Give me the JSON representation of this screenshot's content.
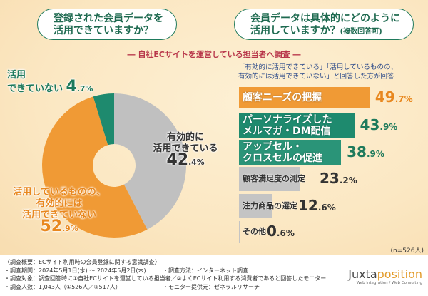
{
  "questions": {
    "left": [
      "登録された会員データを",
      "活用できていますか？"
    ],
    "right": [
      "会員データは具体的にどのように",
      "活用していますか？"
    ],
    "right_note": "(複数回答可)"
  },
  "subtitle": "― 自社ECサイトを運営している担当者へ調査 ―",
  "bar_note": [
    "「有効的に活用できている」「活用しているものの、",
    "有効的には活用できていない」と回答した方が回答"
  ],
  "chart_data": [
    {
      "type": "pie",
      "donut": true,
      "start": "top",
      "direction": "clockwise",
      "slices": [
        {
          "label": "有効的に活用できている",
          "label_lines": [
            "有効的に",
            "活用できている"
          ],
          "value": 42.4,
          "int": "42",
          "dec": ".4%",
          "color": "#c0c0c0",
          "text_color": "#333333"
        },
        {
          "label": "活用しているものの、有効的には活用できていない",
          "label_lines": [
            "活用しているものの、",
            "有効的には",
            "活用できていない"
          ],
          "value": 52.9,
          "int": "52",
          "dec": ".9%",
          "color": "#f09a35",
          "text_color": "#e8871e"
        },
        {
          "label": "活用できていない",
          "label_lines": [
            "活用",
            "できていない"
          ],
          "value": 4.7,
          "int": "4",
          "dec": ".7%",
          "color": "#1e8a6e",
          "text_color": "#1e7a5c"
        }
      ]
    },
    {
      "type": "bar",
      "orientation": "horizontal",
      "unit": "%",
      "categories": [
        "顧客ニーズの把握",
        "パーソナライズしたメルマガ・DM配信",
        "アップセル・クロスセルの促進",
        "顧客満足度の測定",
        "注力商品の選定",
        "その他"
      ],
      "label_lines": [
        [
          "顧客ニーズの把握"
        ],
        [
          "パーソナライズした",
          "メルマガ・DM配信"
        ],
        [
          "アップセル・",
          "クロスセルの促進"
        ],
        [
          "顧客満足度の測定"
        ],
        [
          "注力商品の選定"
        ],
        [
          "その他"
        ]
      ],
      "values": [
        49.7,
        43.9,
        38.9,
        23.2,
        12.6,
        0.6
      ],
      "ints": [
        "49",
        "43",
        "38",
        "23",
        "12",
        "0"
      ],
      "decs": [
        ".7%",
        ".9%",
        ".9%",
        ".2%",
        ".6%",
        ".6%"
      ],
      "colors": [
        "#f09a35",
        "#1e8a6e",
        "#2a9478",
        "#c4c4c4",
        "#c4c4c4",
        "#c4c4c4"
      ],
      "value_colors": [
        "#e8871e",
        "#1e7a5c",
        "#1e7a5c",
        "#333333",
        "#333333",
        "#333333"
      ]
    }
  ],
  "sample": "(n=526人)",
  "footer": [
    "〈調査概要：ECサイト利用時の会員登録に関する意識調査〉",
    "・調査期間：2024年5月1日(水) ～ 2024年5月2日(木)",
    "・調査対象：調査回答時に①自社ECサイトを運営している担当者／②よくECサイト利用する消費者であると回答したモニター",
    "・調査人数：1,043人（①526人／②517人）"
  ],
  "footer_right": [
    "・調査方法：インターネット調査",
    "・モニター提供元：ゼネラルリサーチ"
  ],
  "logo": {
    "name_a": "Juxta",
    "name_b": "position",
    "tagline": "Web Integration / Web Consulting"
  }
}
